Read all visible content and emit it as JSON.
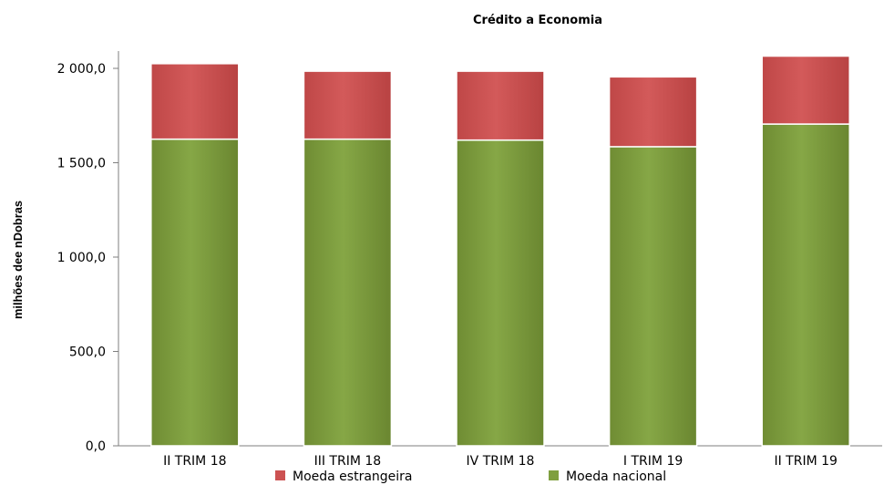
{
  "chart_data": {
    "type": "bar",
    "stacked": true,
    "title": "Crédito a Economia",
    "ylabel": "milhões dee nDobras",
    "xlabel": "",
    "categories": [
      "II TRIM 18",
      "III TRIM 18",
      "IV TRIM 18",
      "I TRIM 19",
      "II TRIM 19"
    ],
    "series": [
      {
        "name": "Moeda nacional",
        "color": "#7f9f3f",
        "values": [
          1625,
          1625,
          1620,
          1585,
          1705
        ]
      },
      {
        "name": "Moeda estrangeira",
        "color": "#cc5252",
        "values": [
          400,
          360,
          365,
          370,
          360
        ]
      }
    ],
    "ylim": [
      0,
      2000
    ],
    "yticks": [
      0,
      500,
      1000,
      1500,
      2000
    ],
    "ytick_labels": [
      "0,0",
      "500,0",
      "1 000,0",
      "1 500,0",
      "2 000,0"
    ],
    "legend_position": "bottom",
    "legend_order": [
      "Moeda estrangeira",
      "Moeda nacional"
    ],
    "grid": false
  }
}
